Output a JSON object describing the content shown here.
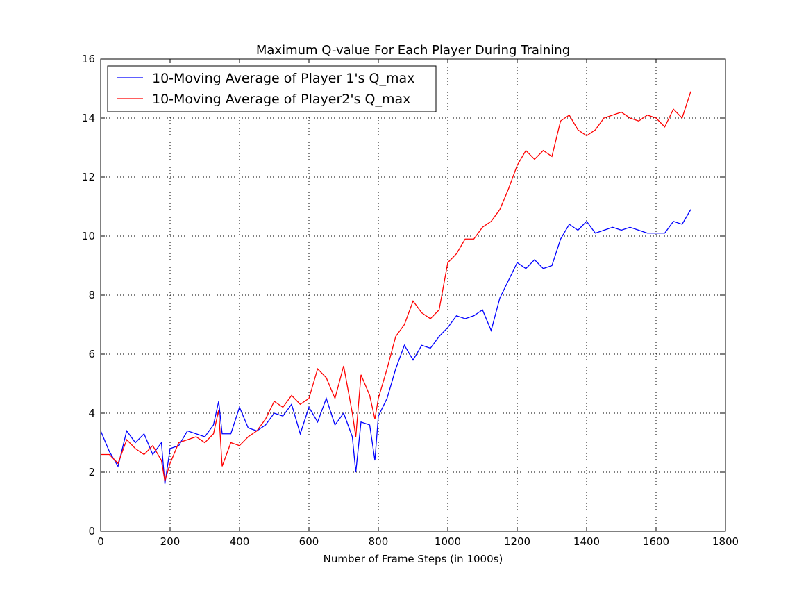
{
  "chart_data": {
    "type": "line",
    "title": "Maximum Q-value For Each Player During Training",
    "x_label": "Number of Frame Steps (in 1000s)",
    "x": [
      0,
      25,
      50,
      75,
      100,
      125,
      150,
      175,
      185,
      200,
      225,
      250,
      275,
      300,
      325,
      340,
      350,
      375,
      400,
      425,
      450,
      475,
      500,
      525,
      550,
      575,
      600,
      625,
      650,
      675,
      700,
      725,
      735,
      750,
      775,
      790,
      800,
      825,
      850,
      875,
      900,
      925,
      950,
      975,
      1000,
      1025,
      1050,
      1075,
      1100,
      1125,
      1150,
      1175,
      1200,
      1225,
      1250,
      1275,
      1300,
      1325,
      1350,
      1375,
      1400,
      1425,
      1450,
      1475,
      1500,
      1525,
      1550,
      1575,
      1600,
      1625,
      1650,
      1675,
      1700
    ],
    "series": [
      {
        "name": "10-Moving Average of Player 1's Q_max",
        "color": "#0000ff",
        "values": [
          3.4,
          2.7,
          2.2,
          3.4,
          3.0,
          3.3,
          2.6,
          3.0,
          1.6,
          2.8,
          2.9,
          3.4,
          3.3,
          3.2,
          3.6,
          4.4,
          3.3,
          3.3,
          4.2,
          3.5,
          3.4,
          3.6,
          4.0,
          3.9,
          4.3,
          3.3,
          4.2,
          3.7,
          4.5,
          3.6,
          4.0,
          3.2,
          2.0,
          3.7,
          3.6,
          2.4,
          3.9,
          4.5,
          5.5,
          6.3,
          5.8,
          6.3,
          6.2,
          6.6,
          6.9,
          7.3,
          7.2,
          7.3,
          7.5,
          6.8,
          7.9,
          8.5,
          9.1,
          8.9,
          9.2,
          8.9,
          9.0,
          9.9,
          10.4,
          10.2,
          10.5,
          10.1,
          10.2,
          10.3,
          10.2,
          10.3,
          10.2,
          10.1,
          10.1,
          10.1,
          10.5,
          10.4,
          10.9
        ]
      },
      {
        "name": "10-Moving Average of Player2's Q_max",
        "color": "#ff0000",
        "values": [
          2.6,
          2.6,
          2.3,
          3.1,
          2.8,
          2.6,
          2.9,
          2.4,
          1.7,
          2.3,
          3.0,
          3.1,
          3.2,
          3.0,
          3.3,
          4.1,
          2.2,
          3.0,
          2.9,
          3.2,
          3.4,
          3.8,
          4.4,
          4.2,
          4.6,
          4.3,
          4.5,
          5.5,
          5.2,
          4.5,
          5.6,
          4.0,
          3.2,
          5.3,
          4.6,
          3.8,
          4.5,
          5.5,
          6.6,
          7.0,
          7.8,
          7.4,
          7.2,
          7.5,
          9.1,
          9.4,
          9.9,
          9.9,
          10.3,
          10.5,
          10.9,
          11.6,
          12.4,
          12.9,
          12.6,
          12.9,
          12.7,
          13.9,
          14.1,
          13.6,
          13.4,
          13.6,
          14.0,
          14.1,
          14.2,
          14.0,
          13.9,
          14.1,
          14.0,
          13.7,
          14.3,
          14.0,
          14.9
        ]
      }
    ],
    "xlim": [
      0,
      1800
    ],
    "xticks": [
      0,
      200,
      400,
      600,
      800,
      1000,
      1200,
      1400,
      1600,
      1800
    ],
    "ylim": [
      0,
      16
    ],
    "yticks": [
      0,
      2,
      4,
      6,
      8,
      10,
      12,
      14,
      16
    ],
    "grid": true,
    "legend": "upper-left"
  }
}
